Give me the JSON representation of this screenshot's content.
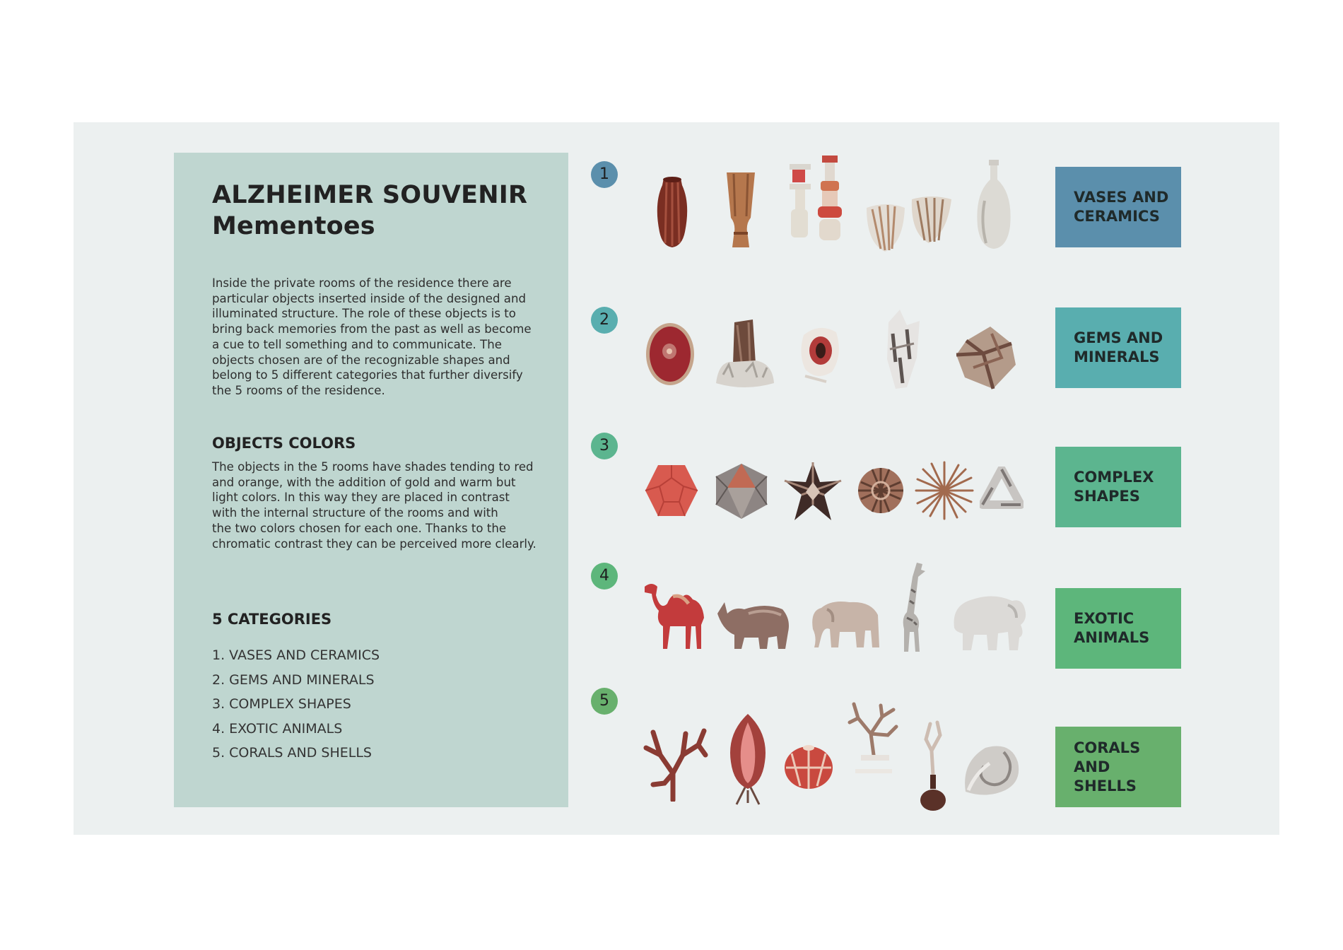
{
  "header": {
    "title": "ALZHEIMER SOUVENIR",
    "subtitle": "Mementoes"
  },
  "intro": {
    "lines": [
      "Inside the private rooms of the residence there are",
      "particular objects inserted inside of the designed and",
      "illuminated structure. The role of these objects is to",
      "bring back memories from the past as well as become",
      "a cue to tell something and to communicate. The",
      "objects chosen are of the recognizable shapes and",
      "belong to 5 different categories that further diversify",
      "the 5 rooms of the residence."
    ]
  },
  "colors_section": {
    "heading": "OBJECTS COLORS",
    "lines": [
      "The objects in the 5 rooms have shades tending to red",
      "and orange, with the addition of gold and warm but",
      "light colors. In this way they are placed in contrast",
      "with the internal structure of the rooms and with",
      "the two colors chosen for each one. Thanks to the",
      "chromatic contrast they can be perceived more clearly."
    ]
  },
  "categories_section": {
    "heading": "5 CATEGORIES",
    "items": [
      "1. VASES AND CERAMICS",
      "2. GEMS AND MINERALS",
      "3. COMPLEX SHAPES",
      "4. EXOTIC ANIMALS",
      "5. CORALS AND SHELLS"
    ]
  },
  "rows": [
    {
      "number": "1",
      "label": "VASES AND\nCERAMICS",
      "color": "#5b8fac",
      "badge_color": "#5b8fac",
      "icons": [
        "ribbed-vase-icon",
        "hourglass-vase-icon",
        "stacked-candlestick-icon",
        "ribbed-bowls-icon",
        "bottle-vase-icon"
      ]
    },
    {
      "number": "2",
      "label": "GEMS AND\nMINERALS",
      "color": "#59aeaf",
      "badge_color": "#59aeaf",
      "icons": [
        "agate-slice-icon",
        "quartz-cluster-icon",
        "geode-icon",
        "crystal-icon",
        "pyrite-cube-icon"
      ]
    },
    {
      "number": "3",
      "label": "COMPLEX\nSHAPES",
      "color": "#5cb58f",
      "badge_color": "#5cb58f",
      "icons": [
        "dodecahedron-icon",
        "icosahedron-icon",
        "stellated-polyhedron-icon",
        "lattice-sphere-icon",
        "starburst-icon",
        "impossible-triangle-icon"
      ]
    },
    {
      "number": "4",
      "label": "EXOTIC\nANIMALS",
      "color": "#5db67b",
      "badge_color": "#5db67b",
      "icons": [
        "camel-icon",
        "rhinoceros-icon",
        "elephant-icon",
        "giraffe-icon",
        "white-elephant-icon"
      ]
    },
    {
      "number": "5",
      "label": "CORALS AND\nSHELLS",
      "color": "#68b06d",
      "badge_color": "#68b06d",
      "icons": [
        "coral-branch-icon",
        "conch-shell-icon",
        "sea-urchin-icon",
        "coral-on-stand-icon",
        "coral-on-vase-icon",
        "nautilus-shell-icon"
      ]
    }
  ]
}
